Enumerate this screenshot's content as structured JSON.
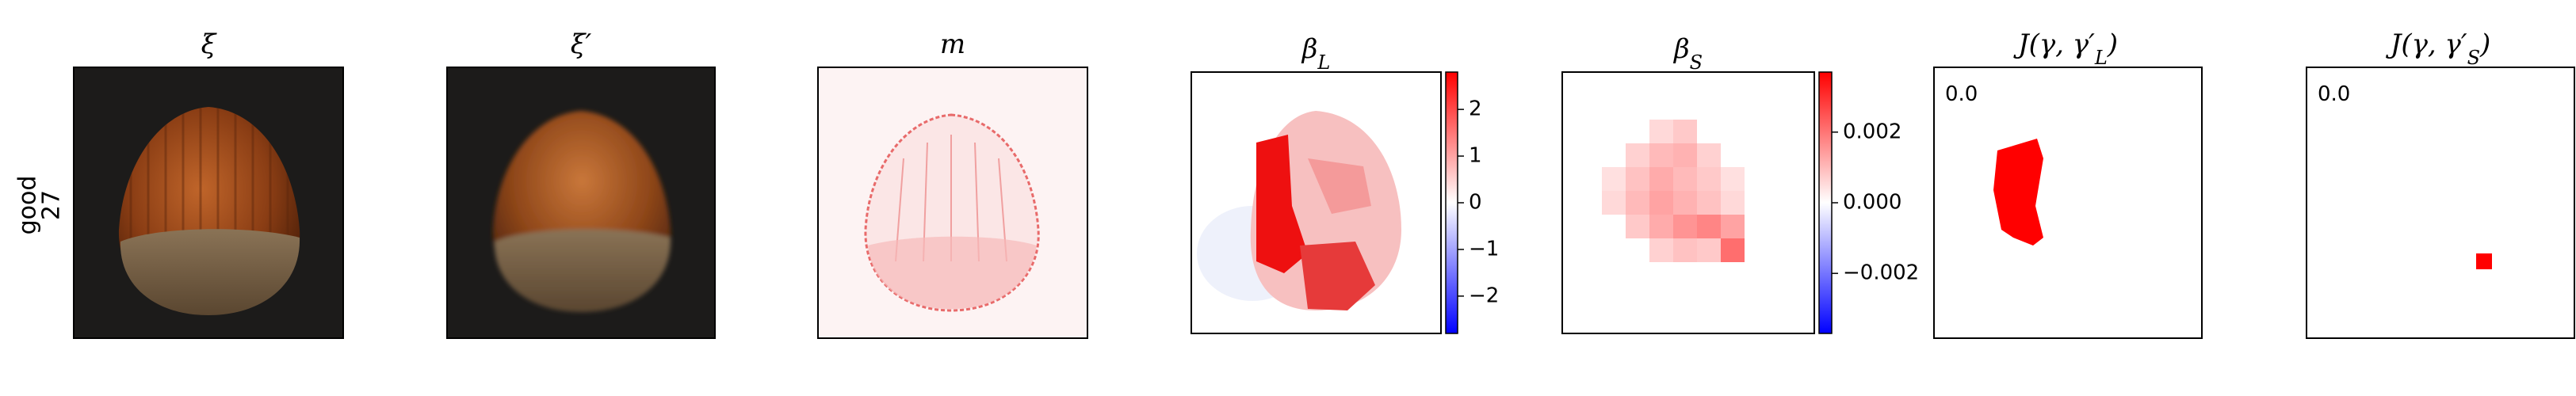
{
  "row_label": [
    "good",
    "27"
  ],
  "panels": [
    {
      "title": [
        {
          "text": "ξ"
        }
      ]
    },
    {
      "title": [
        {
          "text": "ξ′"
        }
      ]
    },
    {
      "title": [
        {
          "text": "m"
        }
      ]
    },
    {
      "title": [
        {
          "text": "β"
        },
        {
          "text": "L",
          "sub": true
        }
      ],
      "colorbar": {
        "lim": [
          -2.8,
          2.8
        ],
        "ticks": [
          2,
          1,
          0,
          {
            "value": -1,
            "label": "−1"
          },
          {
            "value": -2,
            "label": "−2"
          }
        ]
      }
    },
    {
      "title": [
        {
          "text": "β"
        },
        {
          "text": "S",
          "sub": true
        }
      ],
      "colorbar": {
        "lim": [
          -0.0037,
          0.0037
        ],
        "ticks": [
          0.002,
          {
            "value": 0,
            "label": "0.000"
          },
          {
            "value": -0.002,
            "label": "−0.002"
          }
        ]
      }
    },
    {
      "title": [
        {
          "text": "J(γ, γ′"
        },
        {
          "text": "L",
          "sub": true
        },
        {
          "text": ")"
        }
      ],
      "annotation": "0.0"
    },
    {
      "title": [
        {
          "text": "J(γ, γ′"
        },
        {
          "text": "S",
          "sub": true
        },
        {
          "text": ")"
        }
      ],
      "annotation": "0.0"
    }
  ]
}
